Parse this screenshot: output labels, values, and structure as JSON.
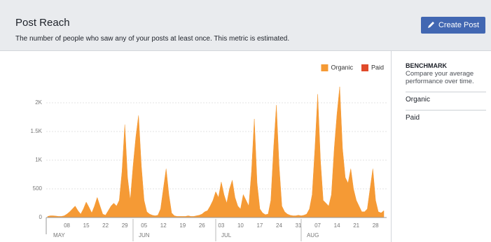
{
  "header": {
    "title": "Post Reach",
    "subtitle": "The number of people who saw any of your posts at least once. This metric is estimated.",
    "button": "Create Post"
  },
  "sidebar": {
    "title": "BENCHMARK",
    "description": "Compare your average performance over time.",
    "items": [
      "Organic",
      "Paid"
    ]
  },
  "chart_data": {
    "type": "area",
    "legend": "top-right",
    "grid": true,
    "categories": [
      null,
      null,
      null,
      null,
      null,
      null,
      null,
      "08",
      null,
      null,
      null,
      null,
      null,
      null,
      "15",
      null,
      null,
      null,
      null,
      null,
      null,
      "22",
      null,
      null,
      null,
      null,
      null,
      null,
      "29",
      null,
      null,
      null,
      null,
      null,
      null,
      "05",
      null,
      null,
      null,
      null,
      null,
      null,
      "12",
      null,
      null,
      null,
      null,
      null,
      null,
      "19",
      null,
      null,
      null,
      null,
      null,
      null,
      "26",
      null,
      null,
      null,
      null,
      null,
      null,
      "03",
      null,
      null,
      null,
      null,
      null,
      null,
      "10",
      null,
      null,
      null,
      null,
      null,
      null,
      "17",
      null,
      null,
      null,
      null,
      null,
      null,
      "24",
      null,
      null,
      null,
      null,
      null,
      null,
      "31",
      null,
      null,
      null,
      null,
      null,
      null,
      "07",
      null,
      null,
      null,
      null,
      null,
      null,
      "14",
      null,
      null,
      null,
      null,
      null,
      null,
      "21",
      null,
      null,
      null,
      null,
      null,
      null,
      "28",
      null,
      null,
      null
    ],
    "months": [
      "MAY",
      null,
      null,
      null,
      null,
      null,
      null,
      null,
      null,
      null,
      null,
      null,
      null,
      null,
      null,
      null,
      null,
      null,
      null,
      null,
      null,
      null,
      null,
      null,
      null,
      null,
      null,
      null,
      null,
      null,
      null,
      "JUN",
      null,
      null,
      null,
      null,
      null,
      null,
      null,
      null,
      null,
      null,
      null,
      null,
      null,
      null,
      null,
      null,
      null,
      null,
      null,
      null,
      null,
      null,
      null,
      null,
      null,
      null,
      null,
      null,
      null,
      "JUL",
      null,
      null,
      null,
      null,
      null,
      null,
      null,
      null,
      null,
      null,
      null,
      null,
      null,
      null,
      null,
      null,
      null,
      null,
      null,
      null,
      null,
      null,
      null,
      null,
      null,
      null,
      null,
      null,
      null,
      null,
      "AUG",
      null,
      null,
      null,
      null,
      null,
      null,
      null,
      null,
      null,
      null,
      null,
      null,
      null,
      null,
      null,
      null,
      null,
      null,
      null,
      null,
      null,
      null,
      null,
      null,
      null,
      null,
      null,
      null,
      null,
      null
    ],
    "series": [
      {
        "name": "Organic",
        "color": "#f59a35",
        "values": [
          20,
          30,
          30,
          25,
          20,
          20,
          30,
          60,
          100,
          150,
          200,
          120,
          60,
          150,
          270,
          180,
          80,
          200,
          350,
          200,
          60,
          40,
          120,
          200,
          250,
          200,
          300,
          800,
          1620,
          700,
          300,
          900,
          1400,
          1780,
          900,
          300,
          100,
          60,
          40,
          30,
          40,
          150,
          500,
          850,
          400,
          80,
          30,
          20,
          20,
          20,
          20,
          30,
          20,
          20,
          30,
          40,
          60,
          100,
          120,
          200,
          300,
          450,
          350,
          620,
          400,
          250,
          500,
          650,
          350,
          200,
          150,
          400,
          300,
          200,
          800,
          1720,
          600,
          150,
          80,
          50,
          60,
          300,
          1200,
          1960,
          900,
          200,
          100,
          60,
          40,
          30,
          30,
          40,
          30,
          40,
          60,
          150,
          400,
          1200,
          2150,
          1000,
          300,
          250,
          200,
          400,
          1200,
          1800,
          2280,
          1200,
          700,
          600,
          850,
          500,
          300,
          200,
          100,
          100,
          150,
          500,
          850,
          300,
          100,
          80,
          120
        ]
      },
      {
        "name": "Paid",
        "color": "#e04a2a",
        "values": [
          0,
          0,
          0,
          0,
          0,
          0,
          0,
          0,
          0,
          0,
          0,
          0,
          0,
          0,
          0,
          0,
          0,
          0,
          0,
          0,
          0,
          0,
          0,
          0,
          0,
          0,
          0,
          0,
          0,
          0,
          0,
          0,
          0,
          0,
          0,
          0,
          0,
          0,
          0,
          0,
          0,
          0,
          0,
          0,
          0,
          0,
          0,
          0,
          0,
          0,
          0,
          0,
          0,
          0,
          0,
          0,
          0,
          0,
          0,
          0,
          0,
          0,
          0,
          0,
          0,
          0,
          0,
          0,
          0,
          0,
          0,
          0,
          0,
          0,
          0,
          0,
          0,
          0,
          0,
          0,
          0,
          0,
          0,
          0,
          0,
          0,
          0,
          0,
          0,
          0,
          0,
          0,
          0,
          0,
          0,
          0,
          0,
          0,
          0,
          0,
          0,
          0,
          0,
          0,
          0,
          0,
          0,
          0,
          0,
          0,
          0,
          0,
          0,
          0,
          0,
          0,
          0,
          0,
          0,
          0,
          0,
          0,
          0
        ]
      }
    ],
    "ylim": [
      0,
      2500
    ],
    "yticks": [
      0,
      500,
      {
        "value": 1000,
        "label": "1K"
      },
      {
        "value": 1500,
        "label": "1.5K"
      },
      {
        "value": 2000,
        "label": "2K"
      }
    ]
  }
}
